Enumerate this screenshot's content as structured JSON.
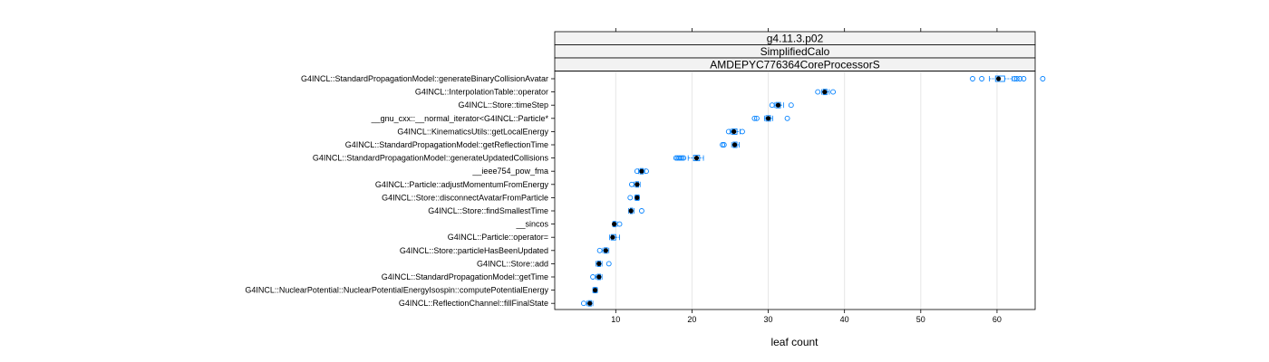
{
  "chart_data": {
    "type": "boxplot",
    "strips": [
      "g4.11.3.p02",
      "SimplifiedCalo",
      "AMDEPYC776364CoreProcessorS"
    ],
    "xlabel": "leaf count",
    "xlim": [
      2,
      65
    ],
    "xticks": [
      10,
      20,
      30,
      40,
      50,
      60
    ],
    "grid": true,
    "colors": {
      "box": "#0080ff",
      "outlier": "#0080ff",
      "median": "#000000",
      "grid": "#e6e6e6",
      "strip": "#f2f2f2"
    },
    "categories": [
      "G4INCL::StandardPropagationModel::generateBinaryCollisionAvatar",
      "G4INCL::InterpolationTable::operator",
      "G4INCL::Store::timeStep",
      "__gnu_cxx::__normal_iterator<G4INCL::Particle*",
      "G4INCL::KinematicsUtils::getLocalEnergy",
      "G4INCL::StandardPropagationModel::getReflectionTime",
      "G4INCL::StandardPropagationModel::generateUpdatedCollisions",
      "__ieee754_pow_fma",
      "G4INCL::Particle::adjustMomentumFromEnergy",
      "G4INCL::Store::disconnectAvatarFromParticle",
      "G4INCL::Store::findSmallestTime",
      "__sincos",
      "G4INCL::Particle::operator=",
      "G4INCL::Store::particleHasBeenUpdated",
      "G4INCL::Store::add",
      "G4INCL::StandardPropagationModel::getTime",
      "G4INCL::NuclearPotential::NuclearPotentialEnergyIsospin::computePotentialEnergy",
      "G4INCL::ReflectionChannel::fillFinalState"
    ],
    "boxes": [
      {
        "min": 59.0,
        "q1": 59.8,
        "median": 60.2,
        "q3": 61.0,
        "max": 62.0,
        "outliers": [
          56.8,
          58.0,
          62.3,
          62.6,
          63.0,
          63.5,
          66.0
        ]
      },
      {
        "min": 37.0,
        "q1": 37.2,
        "median": 37.4,
        "q3": 37.7,
        "max": 38.0,
        "outliers": [
          36.5,
          38.5
        ]
      },
      {
        "min": 30.8,
        "q1": 31.0,
        "median": 31.3,
        "q3": 31.6,
        "max": 32.0,
        "outliers": [
          30.5,
          33.0
        ]
      },
      {
        "min": 29.5,
        "q1": 29.7,
        "median": 30.0,
        "q3": 30.3,
        "max": 30.6,
        "outliers": [
          28.2,
          28.5,
          32.5
        ]
      },
      {
        "min": 25.0,
        "q1": 25.2,
        "median": 25.5,
        "q3": 25.9,
        "max": 26.3,
        "outliers": [
          24.8,
          26.6
        ]
      },
      {
        "min": 25.2,
        "q1": 25.4,
        "median": 25.6,
        "q3": 25.9,
        "max": 26.2,
        "outliers": [
          24.0,
          24.2
        ]
      },
      {
        "min": 19.5,
        "q1": 20.2,
        "median": 20.6,
        "q3": 21.0,
        "max": 21.5,
        "outliers": [
          17.9,
          18.1,
          18.3,
          18.5,
          18.7,
          18.9
        ]
      },
      {
        "min": 13.0,
        "q1": 13.2,
        "median": 13.4,
        "q3": 13.6,
        "max": 13.8,
        "outliers": [
          12.8,
          14.0
        ]
      },
      {
        "min": 12.4,
        "q1": 12.6,
        "median": 12.8,
        "q3": 13.0,
        "max": 13.2,
        "outliers": [
          12.1
        ]
      },
      {
        "min": 12.5,
        "q1": 12.6,
        "median": 12.8,
        "q3": 13.0,
        "max": 13.1,
        "outliers": [
          11.9
        ]
      },
      {
        "min": 11.7,
        "q1": 11.9,
        "median": 12.0,
        "q3": 12.2,
        "max": 12.4,
        "outliers": [
          13.4
        ]
      },
      {
        "min": 9.6,
        "q1": 9.7,
        "median": 9.8,
        "q3": 10.0,
        "max": 10.2,
        "outliers": [
          10.5
        ]
      },
      {
        "min": 9.2,
        "q1": 9.4,
        "median": 9.6,
        "q3": 10.0,
        "max": 10.5,
        "outliers": []
      },
      {
        "min": 8.3,
        "q1": 8.5,
        "median": 8.7,
        "q3": 8.9,
        "max": 9.1,
        "outliers": [
          7.9
        ]
      },
      {
        "min": 7.4,
        "q1": 7.6,
        "median": 7.8,
        "q3": 8.0,
        "max": 8.2,
        "outliers": [
          9.1
        ]
      },
      {
        "min": 7.4,
        "q1": 7.6,
        "median": 7.8,
        "q3": 8.0,
        "max": 8.2,
        "outliers": [
          7.0
        ]
      },
      {
        "min": 7.0,
        "q1": 7.1,
        "median": 7.3,
        "q3": 7.5,
        "max": 7.6,
        "outliers": []
      },
      {
        "min": 6.2,
        "q1": 6.4,
        "median": 6.6,
        "q3": 6.8,
        "max": 7.0,
        "outliers": [
          5.8
        ]
      }
    ]
  }
}
